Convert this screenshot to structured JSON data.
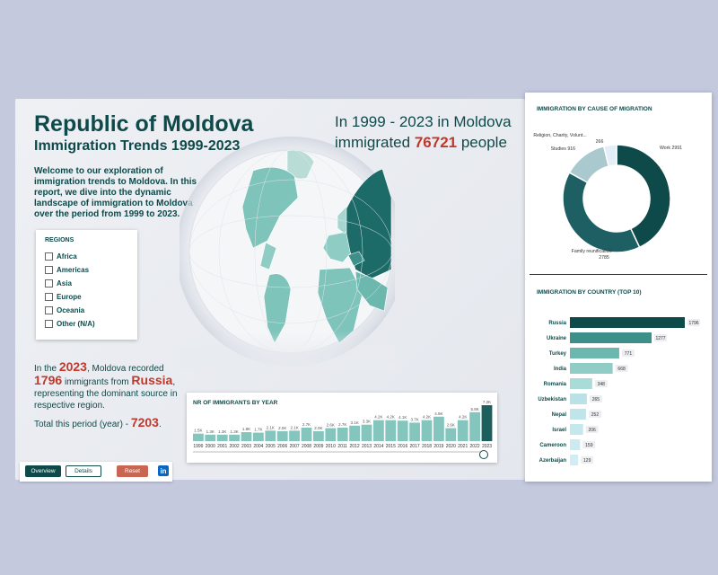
{
  "header": {
    "title": "Republic of Moldova",
    "subtitle": "Immigration Trends 1999-2023",
    "intro": "Welcome to our exploration of immigration trends to Moldova. In this report, we dive into the dynamic landscape of immigration to Moldova over the period from 1999 to 2023."
  },
  "headline": {
    "line1": "In 1999 - 2023 in Moldova",
    "pre": "immigrated",
    "total": "76721",
    "post": "people"
  },
  "regions": {
    "title": "REGIONS",
    "items": [
      "Africa",
      "Americas",
      "Asia",
      "Europe",
      "Oceania",
      "Other (N/A)"
    ]
  },
  "recorded": {
    "p1": "In the",
    "year": "2023",
    "p2": ", Moldova recorded",
    "count": "1796",
    "p3": "immigrants from",
    "country": "Russia",
    "p4": ", representing the dominant source in respective region.",
    "p5": "Total this period (year) -",
    "total": "7203",
    "p6": "."
  },
  "buttons": {
    "overview": "Overview",
    "details": "Details",
    "reset": "Reset",
    "linkedin": "in"
  },
  "colors": {
    "dark": "#0e4a4a",
    "teal": "#3d8f8a",
    "mid": "#7ec4bb",
    "light": "#b9e2e6",
    "highlight_red": "#c0392b"
  },
  "chart_data": [
    {
      "type": "bar",
      "title": "NR OF IMMIGRANTS BY YEAR",
      "categories": [
        "1999",
        "2000",
        "2001",
        "2002",
        "2003",
        "2004",
        "2005",
        "2006",
        "2007",
        "2008",
        "2009",
        "2010",
        "2011",
        "2012",
        "2013",
        "2014",
        "2015",
        "2016",
        "2017",
        "2018",
        "2019",
        "2020",
        "2021",
        "2022",
        "2023"
      ],
      "values": [
        1500,
        1300,
        1300,
        1300,
        1800,
        1700,
        2100,
        2000,
        2100,
        2700,
        2000,
        2600,
        2700,
        3100,
        3300,
        4200,
        4200,
        4100,
        3700,
        4200,
        4900,
        2600,
        4200,
        5800,
        7200
      ],
      "labels": [
        "1.5K",
        "1.3K",
        "1.3K",
        "1.3K",
        "1.8K",
        "1.7K",
        "2.1K",
        "2.0K",
        "2.1K",
        "2.7K",
        "2.0K",
        "2.6K",
        "2.7K",
        "3.1K",
        "3.3K",
        "4.2K",
        "4.2K",
        "4.1K",
        "3.7K",
        "4.2K",
        "4.9K",
        "2.6K",
        "4.2K",
        "5.8K",
        "7.2K"
      ],
      "highlight": "2023"
    },
    {
      "type": "pie",
      "title": "IMMIGRATION BY CAUSE OF MIGRATION",
      "donut": true,
      "slices": [
        {
          "label": "Work",
          "value": 2991,
          "color": "#0e4a4a"
        },
        {
          "label": "Family reunification",
          "value": 2785,
          "color": "#1d5f62"
        },
        {
          "label": "Studies",
          "value": 916,
          "color": "#a9c9cf"
        },
        {
          "label": "Religion, Charity, Volunt...",
          "value": 266,
          "color": "#e2eef8"
        }
      ]
    },
    {
      "type": "bar",
      "orientation": "horizontal",
      "title": "IMMIGRATION BY COUNTRY (TOP 10)",
      "categories": [
        "Russia",
        "Ukraine",
        "Turkey",
        "India",
        "Romania",
        "Uzbekistan",
        "Nepal",
        "Israel",
        "Cameroon",
        "Azerbaijan"
      ],
      "values": [
        1796,
        1277,
        771,
        668,
        348,
        265,
        252,
        206,
        159,
        129
      ]
    }
  ]
}
